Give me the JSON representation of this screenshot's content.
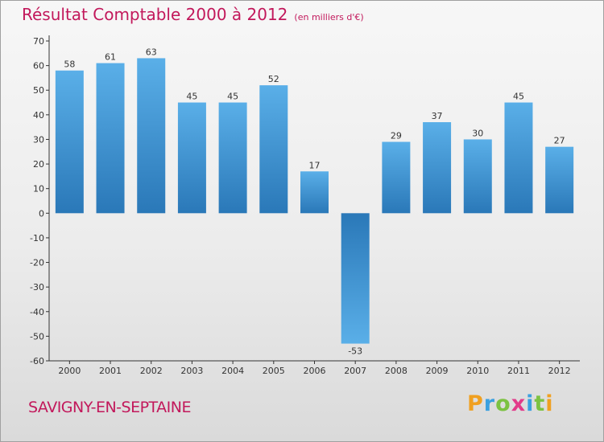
{
  "title": "Résultat Comptable 2000 à 2012",
  "unit": "(en milliers d'€)",
  "place": "SAVIGNY-EN-SEPTAINE",
  "logo": {
    "letters": [
      "P",
      "r",
      "o",
      "x",
      "i",
      "t",
      "i"
    ],
    "colors": [
      "#f0a020",
      "#3aa0e0",
      "#7cc242",
      "#e23a8a",
      "#3aa0e0",
      "#7cc242",
      "#f0a020"
    ]
  },
  "colors": {
    "bar_top": "#5aafe8",
    "bar_bottom": "#2a78b8",
    "accent": "#c2185b"
  },
  "chart_data": {
    "type": "bar",
    "title": "Résultat Comptable 2000 à 2012",
    "ylabel": "en milliers d'€",
    "xlabel": "",
    "categories": [
      "2000",
      "2001",
      "2002",
      "2003",
      "2004",
      "2005",
      "2006",
      "2007",
      "2008",
      "2009",
      "2010",
      "2011",
      "2012"
    ],
    "values": [
      58,
      61,
      63,
      45,
      45,
      52,
      17,
      -53,
      29,
      37,
      30,
      45,
      27
    ],
    "ylim": [
      -60,
      70
    ],
    "yticks": [
      70,
      60,
      50,
      40,
      30,
      20,
      10,
      0,
      -10,
      -20,
      -30,
      -40,
      -50,
      -60
    ],
    "grid": false
  }
}
